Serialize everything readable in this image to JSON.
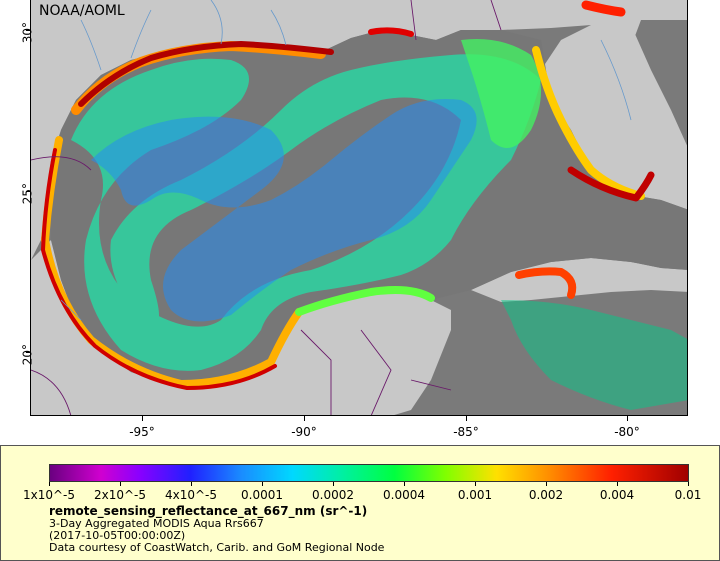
{
  "map": {
    "source_label": "NOAA/AOML",
    "lat_ticks": [
      "30°",
      "25°",
      "20°"
    ],
    "lon_ticks": [
      "-95°",
      "-90°",
      "-85°",
      "-80°"
    ]
  },
  "legend": {
    "colorbar_labels": [
      "1x10^-5",
      "2x10^-5",
      "4x10^-5",
      "0.0001",
      "0.0002",
      "0.0004",
      "0.001",
      "0.002",
      "0.004",
      "0.01"
    ],
    "variable": "remote_sensing_reflectance_at_667_nm (sr^-1)",
    "description": "3-Day Aggregated MODIS Aqua Rrs667",
    "time": "(2017-10-05T00:00:00Z)",
    "credit": "Data courtesy of CoastWatch, Carib. and GoM Regional Node"
  },
  "colors": {
    "land": "#c8c8c8",
    "no_data": "#7a7a7a",
    "boundary": "#6a1a6a",
    "rivers": "#6699cc",
    "low": "#6a0080",
    "high": "#a00000"
  }
}
